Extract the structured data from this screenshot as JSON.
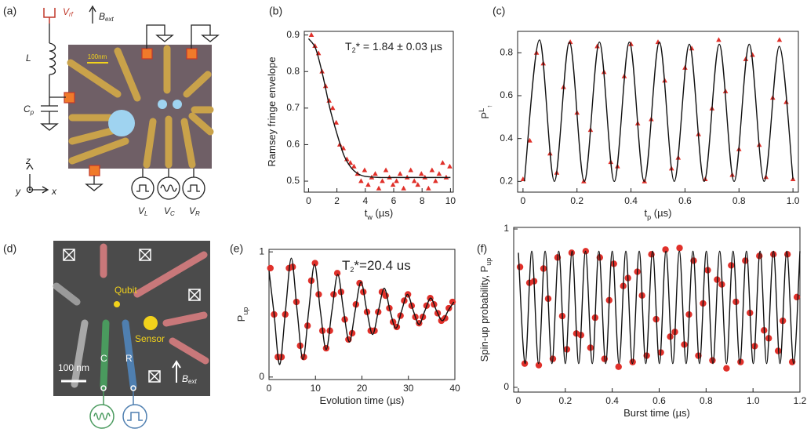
{
  "diagram_a": {
    "label": "(a)",
    "v_rf": [
      "V",
      "rf"
    ],
    "b_ext": [
      "B",
      "ext"
    ],
    "inductor": "L",
    "capacitor": [
      "C",
      "p"
    ],
    "scale_bar": "100nm",
    "axes": [
      "z",
      "y",
      "x"
    ],
    "gates": [
      [
        "V",
        "L"
      ],
      [
        "V",
        "C"
      ],
      [
        "V",
        "R"
      ]
    ]
  },
  "diagram_d": {
    "label": "(d)",
    "qubit": "Qubit",
    "sensor": "Sensor",
    "scale_bar": "100 nm",
    "gate_c": "C",
    "gate_r": "R",
    "b_ext": [
      "B",
      "ext"
    ]
  },
  "chart_data": [
    {
      "label": "(b)",
      "type": "line",
      "ylabel": [
        {
          "text": "Ramsey fringe envelope"
        }
      ],
      "xlabel": [
        {
          "text": "t"
        },
        {
          "text": "w",
          "sub": true
        },
        {
          "text": " (µs)"
        }
      ],
      "annotation": [
        {
          "text": "T"
        },
        {
          "text": "2",
          "sub": true
        },
        {
          "text": "* = 1.84 ± 0.03 µs"
        }
      ],
      "xlim": [
        -0.3,
        10.2
      ],
      "ylim": [
        0.47,
        0.91
      ],
      "xticks": [
        0,
        2,
        4,
        6,
        8,
        10
      ],
      "yticks": [
        0.5,
        0.6,
        0.7,
        0.8,
        0.9
      ],
      "series": [
        {
          "mode": "markers",
          "marker": "triangle",
          "color": "#e0302a",
          "x": [
            0.2,
            0.45,
            0.7,
            0.95,
            1.2,
            1.45,
            1.7,
            1.95,
            2.2,
            2.45,
            2.7,
            2.95,
            3.2,
            3.45,
            3.7,
            3.95,
            4.2,
            4.45,
            4.7,
            4.95,
            5.2,
            5.45,
            5.7,
            5.95,
            6.2,
            6.45,
            6.7,
            6.95,
            7.2,
            7.45,
            7.7,
            7.95,
            8.2,
            8.45,
            8.7,
            8.95,
            9.2,
            9.45,
            9.7,
            9.95
          ],
          "values": [
            0.9,
            0.87,
            0.85,
            0.8,
            0.76,
            0.72,
            0.7,
            0.66,
            0.6,
            0.59,
            0.56,
            0.55,
            0.54,
            0.52,
            0.5,
            0.53,
            0.49,
            0.51,
            0.52,
            0.48,
            0.5,
            0.53,
            0.51,
            0.49,
            0.5,
            0.52,
            0.48,
            0.51,
            0.53,
            0.5,
            0.49,
            0.52,
            0.51,
            0.48,
            0.53,
            0.5,
            0.52,
            0.55,
            0.51,
            0.54
          ]
        },
        {
          "mode": "line",
          "color": "#111",
          "x": [
            0,
            0.5,
            1,
            1.5,
            2,
            2.5,
            3,
            3.5,
            4,
            5,
            6,
            8,
            10
          ],
          "values": [
            0.89,
            0.863,
            0.79,
            0.7,
            0.63,
            0.57,
            0.537,
            0.52,
            0.513,
            0.51,
            0.51,
            0.51,
            0.51
          ]
        }
      ]
    },
    {
      "label": "(c)",
      "type": "line",
      "ylabel": [
        {
          "text": "P"
        },
        {
          "text": "L",
          "sup": true
        },
        {
          "text": "↑",
          "sub": true
        }
      ],
      "xlabel": [
        {
          "text": "t"
        },
        {
          "text": "p",
          "sub": true
        },
        {
          "text": " (µs)"
        }
      ],
      "xlim": [
        -0.02,
        1.02
      ],
      "ylim": [
        0.15,
        0.9
      ],
      "xticks": [
        0,
        0.2,
        0.4,
        0.6,
        0.8,
        {
          "value": 1,
          "label": "1.0"
        }
      ],
      "yticks": [
        0.2,
        0.4,
        0.6,
        0.8
      ],
      "series": [
        {
          "mode": "markers",
          "marker": "triangle",
          "color": "#e0302a",
          "x": [
            0,
            0.025,
            0.05,
            0.075,
            0.1,
            0.125,
            0.15,
            0.175,
            0.2,
            0.225,
            0.25,
            0.275,
            0.3,
            0.325,
            0.35,
            0.375,
            0.4,
            0.425,
            0.45,
            0.475,
            0.5,
            0.525,
            0.55,
            0.575,
            0.6,
            0.625,
            0.65,
            0.675,
            0.7,
            0.725,
            0.75,
            0.775,
            0.8,
            0.825,
            0.85,
            0.875,
            0.9,
            0.925,
            0.95,
            0.975,
            1.0
          ],
          "values": [
            0.21,
            0.39,
            0.8,
            0.75,
            0.33,
            0.24,
            0.64,
            0.85,
            0.52,
            0.2,
            0.44,
            0.83,
            0.71,
            0.29,
            0.27,
            0.69,
            0.84,
            0.47,
            0.2,
            0.49,
            0.85,
            0.67,
            0.26,
            0.31,
            0.73,
            0.82,
            0.42,
            0.21,
            0.54,
            0.86,
            0.62,
            0.23,
            0.35,
            0.77,
            0.79,
            0.37,
            0.22,
            0.59,
            0.86,
            0.57,
            0.21
          ]
        },
        {
          "mode": "line",
          "color": "#111",
          "x": [
            0.005,
            0.061,
            0.116,
            0.172,
            0.227,
            0.283,
            0.338,
            0.394,
            0.449,
            0.505,
            0.56,
            0.616,
            0.671,
            0.727,
            0.782,
            0.838,
            0.893,
            0.949,
            1.0
          ],
          "values": [
            0.2,
            0.86,
            0.2,
            0.85,
            0.2,
            0.85,
            0.2,
            0.85,
            0.2,
            0.85,
            0.2,
            0.84,
            0.2,
            0.84,
            0.2,
            0.84,
            0.2,
            0.83,
            0.21
          ]
        }
      ]
    },
    {
      "label": "(e)",
      "type": "line",
      "ylabel": [
        {
          "text": "P"
        },
        {
          "text": "up",
          "sub": true
        }
      ],
      "xlabel": [
        {
          "text": "Evolution time (µs)"
        }
      ],
      "annotation": [
        {
          "text": "T"
        },
        {
          "text": "2",
          "sub": true
        },
        {
          "text": "*=20.4 us"
        }
      ],
      "xlim": [
        0,
        40
      ],
      "ylim": [
        -0.02,
        1.02
      ],
      "xticks": [
        0,
        10,
        20,
        30,
        40
      ],
      "yticks": [
        0,
        1
      ],
      "series": [
        {
          "mode": "markers",
          "marker": "circle",
          "color": "#e0302a",
          "x": [
            0.3,
            1.1,
            1.9,
            2.7,
            3.5,
            4.3,
            5.1,
            5.9,
            6.7,
            7.5,
            8.3,
            9.1,
            9.9,
            10.7,
            11.5,
            12.3,
            13.1,
            13.9,
            14.7,
            15.5,
            16.3,
            17.1,
            17.9,
            18.7,
            19.5,
            20.3,
            21.1,
            21.9,
            22.7,
            23.5,
            24.3,
            25.1,
            25.9,
            26.7,
            27.5,
            28.3,
            29.1,
            29.9,
            30.7,
            31.5,
            32.3,
            33.1,
            33.9,
            34.7,
            35.5,
            36.3,
            37.1,
            37.9,
            38.7,
            39.5
          ],
          "values": [
            0.87,
            0.5,
            0.16,
            0.16,
            0.5,
            0.87,
            0.88,
            0.6,
            0.25,
            0.16,
            0.41,
            0.77,
            0.91,
            0.66,
            0.37,
            0.23,
            0.37,
            0.66,
            0.83,
            0.68,
            0.46,
            0.3,
            0.35,
            0.58,
            0.75,
            0.68,
            0.52,
            0.37,
            0.37,
            0.52,
            0.68,
            0.65,
            0.55,
            0.44,
            0.4,
            0.49,
            0.61,
            0.66,
            0.57,
            0.48,
            0.43,
            0.48,
            0.57,
            0.63,
            0.58,
            0.51,
            0.45,
            0.47,
            0.55,
            0.6
          ]
        },
        {
          "mode": "line",
          "color": "#111",
          "x": [
            0,
            1.1,
            2.3,
            3.55,
            4.8,
            6.05,
            7.3,
            8.55,
            9.8,
            11.05,
            12.3,
            13.55,
            14.8,
            16.05,
            17.3,
            18.55,
            19.8,
            21.05,
            22.3,
            23.55,
            24.8,
            26.05,
            27.3,
            28.55,
            29.8,
            31.05,
            32.3,
            33.55,
            34.8,
            36.05,
            37.3,
            38.55,
            39.8
          ],
          "values": [
            0.85,
            0.5,
            0.1,
            0.53,
            0.95,
            0.53,
            0.14,
            0.53,
            0.9,
            0.53,
            0.22,
            0.53,
            0.82,
            0.53,
            0.28,
            0.53,
            0.76,
            0.53,
            0.34,
            0.53,
            0.71,
            0.53,
            0.39,
            0.53,
            0.66,
            0.53,
            0.42,
            0.53,
            0.63,
            0.53,
            0.45,
            0.53,
            0.6
          ]
        }
      ]
    },
    {
      "label": "(f)",
      "type": "line",
      "ylabel": [
        {
          "text": "Spin-up probability, P"
        },
        {
          "text": "up",
          "sub": true
        }
      ],
      "xlabel": [
        {
          "text": "Burst time (µs)"
        }
      ],
      "xlim": [
        -0.02,
        1.2
      ],
      "ylim": [
        -0.03,
        1.01
      ],
      "xticks": [
        0,
        0.2,
        0.4,
        0.6,
        0.8,
        {
          "value": 1,
          "label": "1.0"
        },
        1.2
      ],
      "yticks": [
        0,
        1
      ],
      "series": [
        {
          "mode": "markers",
          "marker": "circle",
          "color": "#e0302a",
          "x": [
            0.007,
            0.027,
            0.047,
            0.067,
            0.087,
            0.107,
            0.127,
            0.147,
            0.167,
            0.187,
            0.207,
            0.227,
            0.247,
            0.267,
            0.287,
            0.307,
            0.327,
            0.347,
            0.367,
            0.387,
            0.407,
            0.427,
            0.447,
            0.467,
            0.487,
            0.507,
            0.527,
            0.547,
            0.567,
            0.587,
            0.607,
            0.627,
            0.647,
            0.667,
            0.687,
            0.707,
            0.727,
            0.747,
            0.767,
            0.787,
            0.807,
            0.827,
            0.847,
            0.867,
            0.887,
            0.907,
            0.927,
            0.947,
            0.967,
            0.987,
            1.007,
            1.027,
            1.047,
            1.067,
            1.087,
            1.107,
            1.127,
            1.147,
            1.167,
            1.187
          ],
          "values": [
            0.76,
            0.15,
            0.66,
            0.67,
            0.14,
            0.75,
            0.56,
            0.18,
            0.82,
            0.45,
            0.24,
            0.85,
            0.34,
            0.33,
            0.86,
            0.25,
            0.44,
            0.82,
            0.18,
            0.55,
            0.78,
            0.13,
            0.64,
            0.69,
            0.16,
            0.73,
            0.58,
            0.2,
            0.84,
            0.43,
            0.22,
            0.87,
            0.32,
            0.35,
            0.88,
            0.27,
            0.46,
            0.8,
            0.2,
            0.53,
            0.74,
            0.17,
            0.68,
            0.65,
            0.12,
            0.77,
            0.54,
            0.16,
            0.8,
            0.47,
            0.26,
            0.83,
            0.36,
            0.31,
            0.84,
            0.23,
            0.42,
            0.84,
            0.16,
            0.57
          ]
        },
        {
          "mode": "line",
          "color": "#111",
          "x": [
            0,
            0.029,
            0.057,
            0.086,
            0.114,
            0.143,
            0.172,
            0.2,
            0.229,
            0.257,
            0.286,
            0.315,
            0.343,
            0.372,
            0.4,
            0.429,
            0.458,
            0.486,
            0.515,
            0.543,
            0.572,
            0.601,
            0.629,
            0.658,
            0.686,
            0.715,
            0.744,
            0.772,
            0.801,
            0.829,
            0.858,
            0.887,
            0.915,
            0.944,
            0.972,
            1.001,
            1.03,
            1.058,
            1.087,
            1.115,
            1.144,
            1.173,
            1.2
          ],
          "values": [
            0.85,
            0.15,
            0.86,
            0.15,
            0.86,
            0.15,
            0.86,
            0.15,
            0.86,
            0.15,
            0.86,
            0.15,
            0.86,
            0.15,
            0.86,
            0.15,
            0.86,
            0.15,
            0.86,
            0.15,
            0.86,
            0.15,
            0.86,
            0.15,
            0.86,
            0.15,
            0.86,
            0.15,
            0.86,
            0.15,
            0.86,
            0.15,
            0.86,
            0.15,
            0.86,
            0.15,
            0.86,
            0.15,
            0.86,
            0.15,
            0.86,
            0.15,
            0.86
          ]
        }
      ]
    }
  ]
}
